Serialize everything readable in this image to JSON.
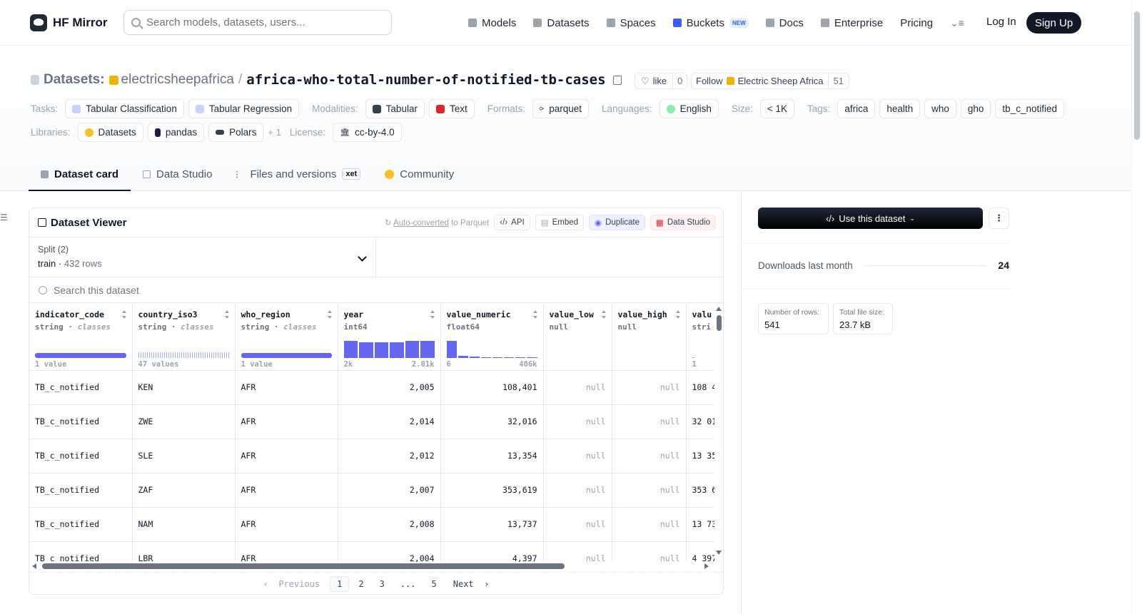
{
  "nav": {
    "logo": "HF Mirror",
    "search_placeholder": "Search models, datasets, users...",
    "menu": [
      {
        "label": "Models",
        "icon": "cube-icon"
      },
      {
        "label": "Datasets",
        "icon": "database-icon"
      },
      {
        "label": "Spaces",
        "icon": "grid-icon"
      },
      {
        "label": "Buckets",
        "icon": "bucket-icon",
        "badge": "NEW"
      },
      {
        "label": "Docs",
        "icon": "book-icon"
      },
      {
        "label": "Enterprise",
        "icon": "enterprise-icon"
      },
      {
        "label": "Pricing"
      }
    ],
    "login": "Log In",
    "signup": "Sign Up"
  },
  "dataset": {
    "section": "Datasets:",
    "org": "electricsheepafrica",
    "separator": "/",
    "name": "africa-who-total-number-of-notified-tb-cases",
    "like": "like",
    "likes": "0",
    "follow": "Follow",
    "follow_org": "Electric Sheep Africa",
    "followers": "51"
  },
  "meta": {
    "tasks_label": "Tasks:",
    "tasks": [
      "Tabular Classification",
      "Tabular Regression"
    ],
    "modalities_label": "Modalities:",
    "modalities": [
      "Tabular",
      "Text"
    ],
    "formats_label": "Formats:",
    "formats": [
      "parquet"
    ],
    "languages_label": "Languages:",
    "languages": [
      "English"
    ],
    "size_label": "Size:",
    "size": "< 1K",
    "tags_label": "Tags:",
    "tags": [
      "africa",
      "health",
      "who",
      "gho",
      "tb_c_notified"
    ],
    "libraries_label": "Libraries:",
    "libraries": [
      "Datasets",
      "pandas",
      "Polars"
    ],
    "libraries_more": "+ 1",
    "license_label": "License:",
    "license": "cc-by-4.0"
  },
  "tabs": [
    {
      "label": "Dataset card",
      "active": true
    },
    {
      "label": "Data Studio"
    },
    {
      "label": "Files and versions",
      "badge": "xet"
    },
    {
      "label": "Community"
    }
  ],
  "viewer": {
    "title": "Dataset Viewer",
    "auto_converted": "Auto-converted",
    "to_parquet": " to Parquet",
    "api": "API",
    "embed": "Embed",
    "duplicate": "Duplicate",
    "data_studio": "Data Studio",
    "split_label": "Split (2)",
    "split_name": "train",
    "split_rows": "432 rows",
    "search_placeholder": "Search this dataset",
    "columns": [
      {
        "name": "indicator_code",
        "type": "string",
        "kind": "classes",
        "foot_left": "1 value",
        "foot_right": ""
      },
      {
        "name": "country_iso3",
        "type": "string",
        "kind": "classes",
        "foot_left": "47 values",
        "foot_right": ""
      },
      {
        "name": "who_region",
        "type": "string",
        "kind": "classes",
        "foot_left": "1 value",
        "foot_right": ""
      },
      {
        "name": "year",
        "type": "int64",
        "kind": "",
        "foot_left": "2k",
        "foot_right": "2.01k"
      },
      {
        "name": "value_numeric",
        "type": "float64",
        "kind": "",
        "foot_left": "6",
        "foot_right": "406k"
      },
      {
        "name": "value_low",
        "type": "null",
        "kind": "",
        "foot_left": "",
        "foot_right": ""
      },
      {
        "name": "value_high",
        "type": "null",
        "kind": "",
        "foot_left": "",
        "foot_right": ""
      },
      {
        "name": "valu",
        "type": "stri",
        "kind": "",
        "foot_left": "1",
        "foot_right": ""
      }
    ],
    "year_hist": [
      0.85,
      0.78,
      0.78,
      0.78,
      0.85,
      0.85
    ],
    "value_hist": [
      0.85,
      0.1,
      0.05,
      0.02,
      0,
      0.02,
      0.02,
      0.02
    ],
    "rows": [
      [
        "TB_c_notified",
        "KEN",
        "AFR",
        "2,005",
        "108,401",
        "null",
        "null",
        "108 4"
      ],
      [
        "TB_c_notified",
        "ZWE",
        "AFR",
        "2,014",
        "32,016",
        "null",
        "null",
        "32 01"
      ],
      [
        "TB_c_notified",
        "SLE",
        "AFR",
        "2,012",
        "13,354",
        "null",
        "null",
        "13 35"
      ],
      [
        "TB_c_notified",
        "ZAF",
        "AFR",
        "2,007",
        "353,619",
        "null",
        "null",
        "353 6"
      ],
      [
        "TB_c_notified",
        "NAM",
        "AFR",
        "2,008",
        "13,737",
        "null",
        "null",
        "13 73"
      ],
      [
        "TB_c_notified",
        "LBR",
        "AFR",
        "2,004",
        "4,397",
        "null",
        "null",
        "4 397"
      ]
    ],
    "pager": {
      "prev": "Previous",
      "pages": [
        "1",
        "2",
        "3",
        "...",
        "5"
      ],
      "next": "Next"
    }
  },
  "side": {
    "use_button": "Use this dataset",
    "downloads_label": "Downloads last month",
    "downloads": "24",
    "rows_label": "Number of rows:",
    "rows": "541",
    "size_label": "Total file size:",
    "size": "23.7 kB"
  },
  "colors": {
    "accent": "#6366f1",
    "dark": "#111827",
    "org": "#f2b200"
  }
}
